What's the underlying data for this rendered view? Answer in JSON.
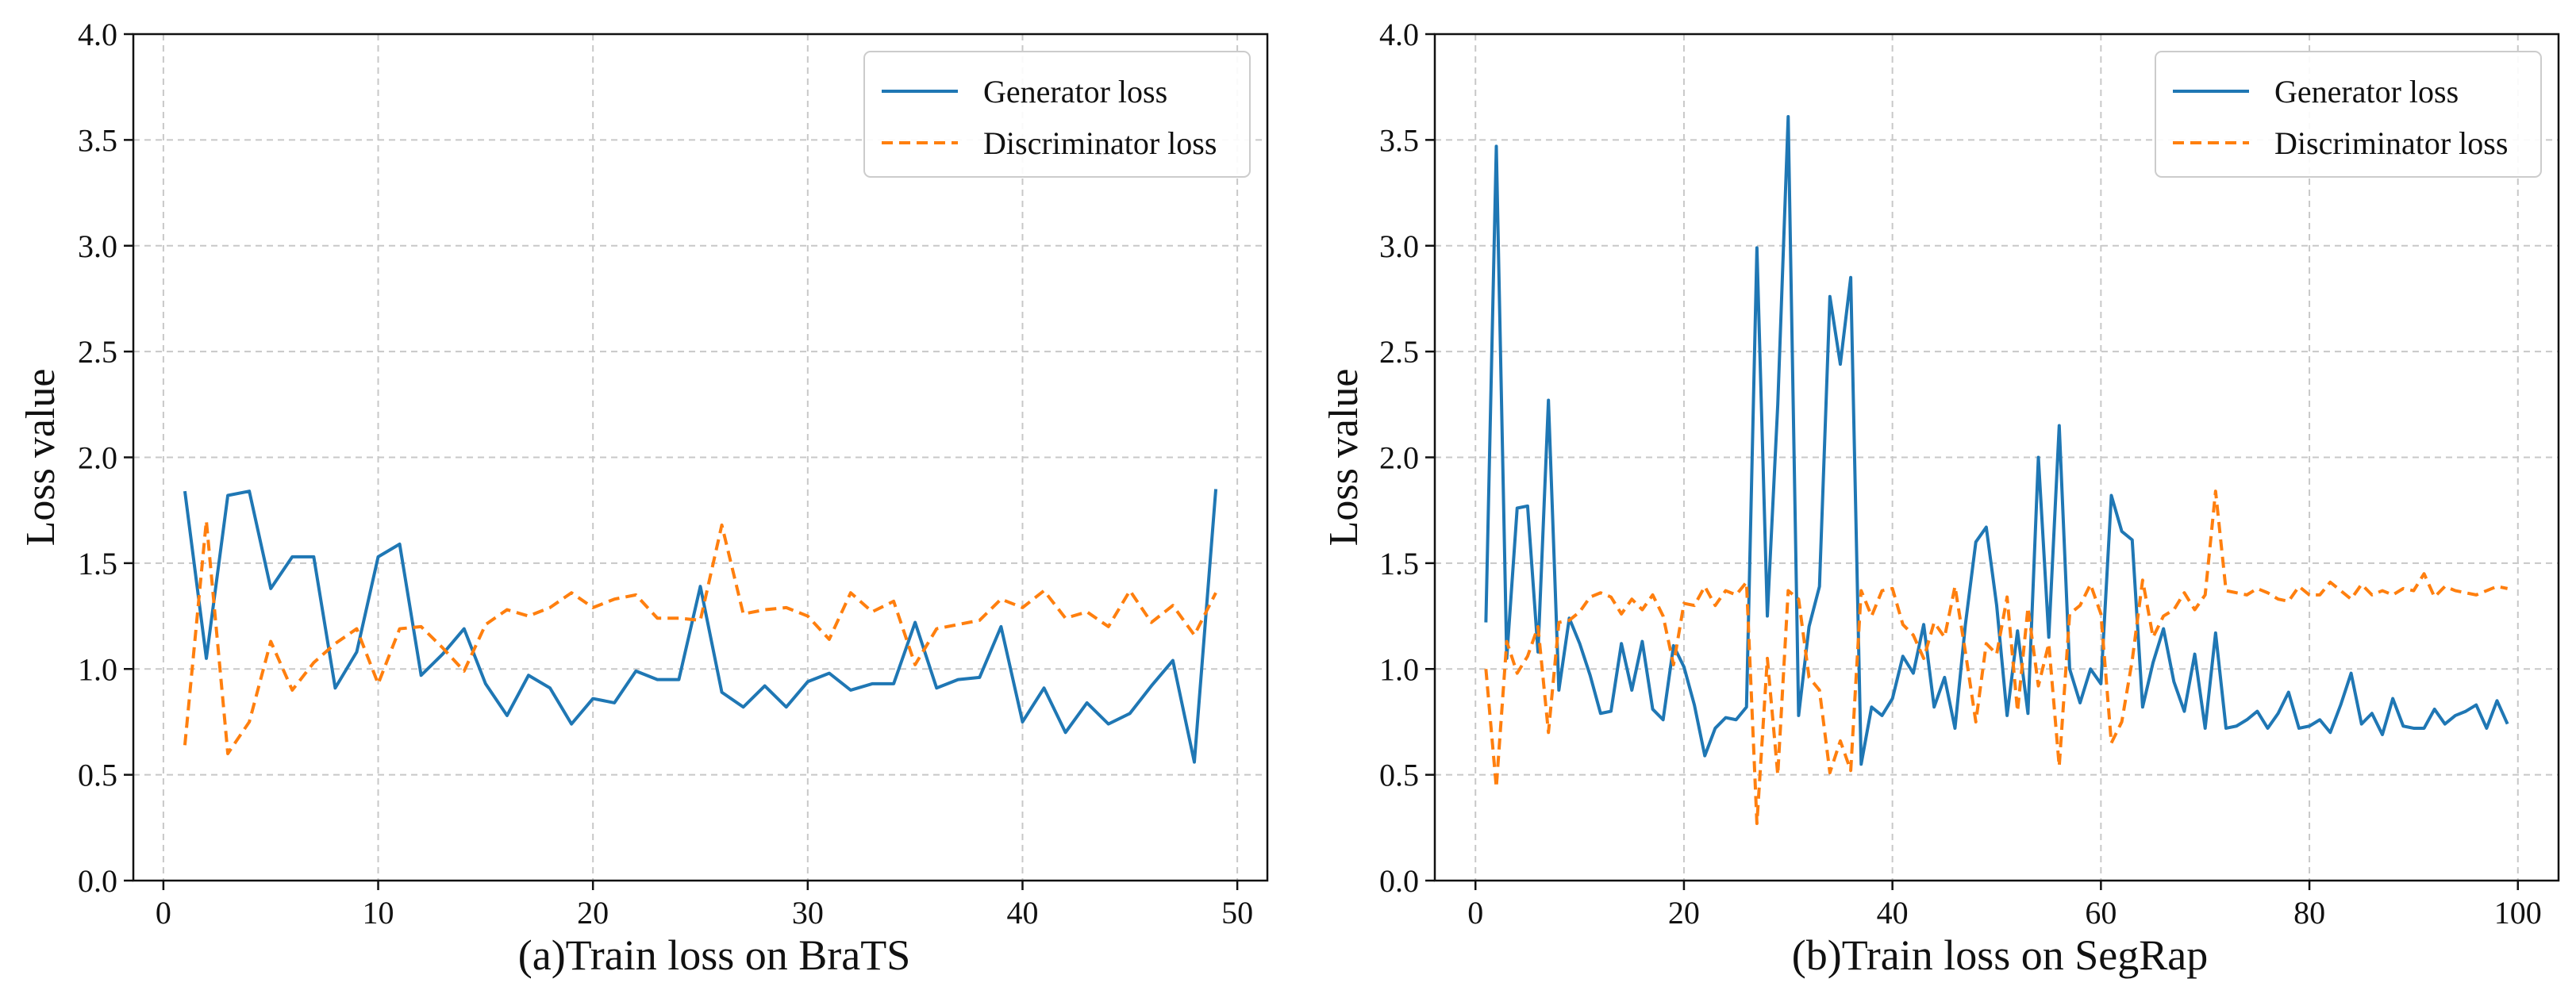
{
  "chart_data": [
    {
      "type": "line",
      "caption": "(a)Train loss on BraTS",
      "ylabel": "Loss value",
      "xlabel": "",
      "xlim": [
        -1.4,
        51.4
      ],
      "ylim": [
        0.0,
        4.0
      ],
      "xticks": [
        0,
        10,
        20,
        30,
        40,
        50
      ],
      "yticks": [
        0.0,
        0.5,
        1.0,
        1.5,
        2.0,
        2.5,
        3.0,
        3.5,
        4.0
      ],
      "grid": true,
      "legend_position": "top-right",
      "x": [
        1,
        2,
        3,
        4,
        5,
        6,
        7,
        8,
        9,
        10,
        11,
        12,
        13,
        14,
        15,
        16,
        17,
        18,
        19,
        20,
        21,
        22,
        23,
        24,
        25,
        26,
        27,
        28,
        29,
        30,
        31,
        32,
        33,
        34,
        35,
        36,
        37,
        38,
        39,
        40,
        41,
        42,
        43,
        44,
        45,
        46,
        47,
        48,
        49
      ],
      "series": [
        {
          "name": "Generator loss",
          "color": "#1f77b4",
          "dash": "solid",
          "values": [
            1.84,
            1.05,
            1.82,
            1.84,
            1.38,
            1.53,
            1.53,
            0.91,
            1.08,
            1.53,
            1.59,
            0.97,
            1.07,
            1.19,
            0.93,
            0.78,
            0.97,
            0.91,
            0.74,
            0.86,
            0.84,
            0.99,
            0.95,
            0.95,
            1.39,
            0.89,
            0.82,
            0.92,
            0.82,
            0.94,
            0.98,
            0.9,
            0.93,
            0.93,
            1.22,
            0.91,
            0.95,
            0.96,
            1.2,
            0.75,
            0.91,
            0.7,
            0.84,
            0.74,
            0.79,
            0.92,
            1.04,
            0.56,
            1.85
          ]
        },
        {
          "name": "Discriminator loss",
          "color": "#ff7f0e",
          "dash": "dashed",
          "values": [
            0.64,
            1.7,
            0.6,
            0.75,
            1.13,
            0.9,
            1.03,
            1.12,
            1.19,
            0.93,
            1.19,
            1.2,
            1.1,
            0.99,
            1.21,
            1.28,
            1.25,
            1.29,
            1.36,
            1.29,
            1.33,
            1.35,
            1.24,
            1.24,
            1.23,
            1.68,
            1.26,
            1.28,
            1.29,
            1.25,
            1.14,
            1.36,
            1.27,
            1.32,
            1.02,
            1.19,
            1.21,
            1.23,
            1.33,
            1.29,
            1.37,
            1.24,
            1.27,
            1.2,
            1.37,
            1.22,
            1.3,
            1.16,
            1.36
          ]
        }
      ]
    },
    {
      "type": "line",
      "caption": "(b)Train loss on SegRap",
      "ylabel": "Loss value",
      "xlabel": "",
      "xlim": [
        -3.9,
        103.9
      ],
      "ylim": [
        0.0,
        4.0
      ],
      "xticks": [
        0,
        20,
        40,
        60,
        80,
        100
      ],
      "yticks": [
        0.0,
        0.5,
        1.0,
        1.5,
        2.0,
        2.5,
        3.0,
        3.5,
        4.0
      ],
      "grid": true,
      "legend_position": "top-right",
      "x": [
        1,
        2,
        3,
        4,
        5,
        6,
        7,
        8,
        9,
        10,
        11,
        12,
        13,
        14,
        15,
        16,
        17,
        18,
        19,
        20,
        21,
        22,
        23,
        24,
        25,
        26,
        27,
        28,
        29,
        30,
        31,
        32,
        33,
        34,
        35,
        36,
        37,
        38,
        39,
        40,
        41,
        42,
        43,
        44,
        45,
        46,
        47,
        48,
        49,
        50,
        51,
        52,
        53,
        54,
        55,
        56,
        57,
        58,
        59,
        60,
        61,
        62,
        63,
        64,
        65,
        66,
        67,
        68,
        69,
        70,
        71,
        72,
        73,
        74,
        75,
        76,
        77,
        78,
        79,
        80,
        81,
        82,
        83,
        84,
        85,
        86,
        87,
        88,
        89,
        90,
        91,
        92,
        93,
        94,
        95,
        96,
        97,
        98,
        99
      ],
      "series": [
        {
          "name": "Generator loss",
          "color": "#1f77b4",
          "dash": "solid",
          "values": [
            1.22,
            3.47,
            1.05,
            1.76,
            1.77,
            1.08,
            2.27,
            0.9,
            1.24,
            1.12,
            0.97,
            0.79,
            0.8,
            1.12,
            0.9,
            1.13,
            0.81,
            0.76,
            1.11,
            1.01,
            0.83,
            0.59,
            0.72,
            0.77,
            0.76,
            0.82,
            2.99,
            1.25,
            2.25,
            3.61,
            0.78,
            1.2,
            1.39,
            2.76,
            2.44,
            2.85,
            0.55,
            0.82,
            0.78,
            0.86,
            1.06,
            0.98,
            1.21,
            0.82,
            0.96,
            0.72,
            1.21,
            1.6,
            1.67,
            1.3,
            0.78,
            1.18,
            0.79,
            2.0,
            1.15,
            2.15,
            1.0,
            0.84,
            1.0,
            0.93,
            1.82,
            1.65,
            1.61,
            0.82,
            1.03,
            1.19,
            0.94,
            0.8,
            1.07,
            0.72,
            1.17,
            0.72,
            0.73,
            0.76,
            0.8,
            0.72,
            0.79,
            0.89,
            0.72,
            0.73,
            0.76,
            0.7,
            0.83,
            0.98,
            0.74,
            0.79,
            0.69,
            0.86,
            0.73,
            0.72,
            0.72,
            0.81,
            0.74,
            0.78,
            0.8,
            0.83,
            0.72,
            0.85,
            0.74
          ]
        },
        {
          "name": "Discriminator loss",
          "color": "#ff7f0e",
          "dash": "dashed",
          "values": [
            1.0,
            0.44,
            1.13,
            0.98,
            1.06,
            1.2,
            0.7,
            1.22,
            1.23,
            1.27,
            1.34,
            1.36,
            1.34,
            1.26,
            1.33,
            1.28,
            1.35,
            1.25,
            1.02,
            1.31,
            1.3,
            1.39,
            1.3,
            1.37,
            1.35,
            1.41,
            0.27,
            1.05,
            0.5,
            1.37,
            1.33,
            0.96,
            0.9,
            0.51,
            0.66,
            0.52,
            1.37,
            1.25,
            1.37,
            1.38,
            1.21,
            1.16,
            1.05,
            1.22,
            1.15,
            1.39,
            1.08,
            0.75,
            1.12,
            1.07,
            1.34,
            0.8,
            1.29,
            0.92,
            1.12,
            0.54,
            1.26,
            1.3,
            1.4,
            1.26,
            0.65,
            0.75,
            1.04,
            1.42,
            1.15,
            1.25,
            1.28,
            1.36,
            1.28,
            1.35,
            1.84,
            1.37,
            1.36,
            1.35,
            1.38,
            1.36,
            1.33,
            1.32,
            1.39,
            1.35,
            1.35,
            1.41,
            1.37,
            1.33,
            1.4,
            1.35,
            1.37,
            1.35,
            1.38,
            1.37,
            1.45,
            1.34,
            1.39,
            1.37,
            1.36,
            1.35,
            1.37,
            1.39,
            1.38
          ]
        }
      ]
    }
  ]
}
